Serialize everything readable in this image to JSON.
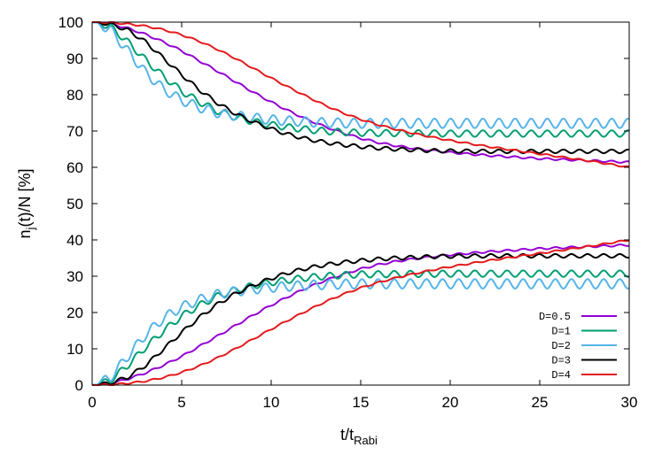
{
  "chart_data": {
    "type": "line",
    "xlabel": "t/t",
    "xlabel_sub": "Rabi",
    "ylabel": "n",
    "ylabel_sub": "j",
    "ylabel_rest": "(t)/N [%]",
    "xlim": [
      0,
      30
    ],
    "ylim": [
      0,
      100
    ],
    "xticks": [
      "0",
      "5",
      "10",
      "15",
      "20",
      "25",
      "30"
    ],
    "yticks": [
      "0",
      "10",
      "20",
      "30",
      "40",
      "50",
      "60",
      "70",
      "80",
      "90",
      "100"
    ],
    "grid": false,
    "legend_position": "bottom-right",
    "series": [
      {
        "name": "D=0.5",
        "color": "#9400d3",
        "upper": [
          [
            0,
            100
          ],
          [
            1,
            99.6
          ],
          [
            2,
            98.3
          ],
          [
            3,
            96.6
          ],
          [
            4,
            94.5
          ],
          [
            5,
            92.1
          ],
          [
            6,
            89.3
          ],
          [
            7,
            86.5
          ],
          [
            8,
            83.6
          ],
          [
            9,
            80.7
          ],
          [
            10,
            78.0
          ],
          [
            11,
            75.5
          ],
          [
            12,
            73.2
          ],
          [
            13,
            71.2
          ],
          [
            14,
            69.5
          ],
          [
            15,
            68.0
          ],
          [
            16,
            66.8
          ],
          [
            17,
            65.9
          ],
          [
            18,
            65.2
          ],
          [
            19,
            64.6
          ],
          [
            20,
            64.1
          ],
          [
            21,
            63.7
          ],
          [
            22,
            63.3
          ],
          [
            23,
            63.0
          ],
          [
            24,
            62.7
          ],
          [
            25,
            62.4
          ],
          [
            26,
            62.2
          ],
          [
            27,
            62.0
          ],
          [
            28,
            61.8
          ],
          [
            29,
            61.6
          ],
          [
            30,
            61.4
          ]
        ],
        "lower": [
          [
            0,
            0
          ],
          [
            1,
            0.4
          ],
          [
            2,
            1.7
          ],
          [
            3,
            3.4
          ],
          [
            4,
            5.5
          ],
          [
            5,
            7.9
          ],
          [
            6,
            10.7
          ],
          [
            7,
            13.5
          ],
          [
            8,
            16.4
          ],
          [
            9,
            19.3
          ],
          [
            10,
            22.0
          ],
          [
            11,
            24.5
          ],
          [
            12,
            26.8
          ],
          [
            13,
            28.8
          ],
          [
            14,
            30.5
          ],
          [
            15,
            32.0
          ],
          [
            16,
            33.2
          ],
          [
            17,
            34.1
          ],
          [
            18,
            34.8
          ],
          [
            19,
            35.4
          ],
          [
            20,
            35.9
          ],
          [
            21,
            36.3
          ],
          [
            22,
            36.7
          ],
          [
            23,
            37.0
          ],
          [
            24,
            37.3
          ],
          [
            25,
            37.6
          ],
          [
            26,
            37.8
          ],
          [
            27,
            38.0
          ],
          [
            28,
            38.2
          ],
          [
            29,
            38.4
          ],
          [
            30,
            38.6
          ]
        ],
        "osc_amp": 0.25
      },
      {
        "name": "D=1",
        "color": "#009e73",
        "upper": [
          [
            0,
            100
          ],
          [
            1,
            98.8
          ],
          [
            2,
            94.5
          ],
          [
            3,
            89.5
          ],
          [
            4,
            85.0
          ],
          [
            5,
            81.0
          ],
          [
            6,
            78.0
          ],
          [
            7,
            75.5
          ],
          [
            8,
            73.8
          ],
          [
            9,
            72.6
          ],
          [
            10,
            71.7
          ],
          [
            11,
            71.0
          ],
          [
            12,
            70.4
          ],
          [
            13,
            70.0
          ],
          [
            14,
            69.7
          ],
          [
            15,
            69.5
          ],
          [
            20,
            69.3
          ],
          [
            25,
            69.3
          ],
          [
            30,
            69.3
          ]
        ],
        "lower": [
          [
            0,
            0
          ],
          [
            1,
            1.2
          ],
          [
            2,
            5.5
          ],
          [
            3,
            10.5
          ],
          [
            4,
            15.0
          ],
          [
            5,
            19.0
          ],
          [
            6,
            22.0
          ],
          [
            7,
            24.5
          ],
          [
            8,
            26.2
          ],
          [
            9,
            27.4
          ],
          [
            10,
            28.3
          ],
          [
            11,
            29.0
          ],
          [
            12,
            29.6
          ],
          [
            13,
            30.0
          ],
          [
            14,
            30.3
          ],
          [
            15,
            30.5
          ],
          [
            20,
            30.7
          ],
          [
            25,
            30.7
          ],
          [
            30,
            30.7
          ]
        ],
        "osc_amp": 0.9
      },
      {
        "name": "D=2",
        "color": "#56b4e9",
        "upper": [
          [
            0,
            100
          ],
          [
            1,
            98.0
          ],
          [
            2,
            92.0
          ],
          [
            3,
            86.0
          ],
          [
            4,
            81.5
          ],
          [
            5,
            78.5
          ],
          [
            6,
            76.5
          ],
          [
            7,
            75.0
          ],
          [
            8,
            74.2
          ],
          [
            9,
            73.6
          ],
          [
            10,
            73.1
          ],
          [
            11,
            72.8
          ],
          [
            12,
            72.5
          ],
          [
            13,
            72.3
          ],
          [
            14,
            72.2
          ],
          [
            15,
            72.1
          ],
          [
            20,
            72.1
          ],
          [
            25,
            72.1
          ],
          [
            30,
            72.1
          ]
        ],
        "lower": [
          [
            0,
            0
          ],
          [
            1,
            2.0
          ],
          [
            2,
            8.0
          ],
          [
            3,
            14.0
          ],
          [
            4,
            18.5
          ],
          [
            5,
            21.5
          ],
          [
            6,
            23.5
          ],
          [
            7,
            25.0
          ],
          [
            8,
            25.8
          ],
          [
            9,
            26.4
          ],
          [
            10,
            26.9
          ],
          [
            11,
            27.2
          ],
          [
            12,
            27.5
          ],
          [
            13,
            27.7
          ],
          [
            14,
            27.8
          ],
          [
            15,
            27.9
          ],
          [
            20,
            27.9
          ],
          [
            25,
            27.9
          ],
          [
            30,
            27.9
          ]
        ],
        "osc_amp": 1.3
      },
      {
        "name": "D=3",
        "color": "#000000",
        "upper": [
          [
            0,
            100
          ],
          [
            1,
            99.5
          ],
          [
            2,
            97.8
          ],
          [
            3,
            94.5
          ],
          [
            4,
            90.0
          ],
          [
            5,
            85.5
          ],
          [
            6,
            81.3
          ],
          [
            7,
            77.7
          ],
          [
            8,
            74.8
          ],
          [
            9,
            72.5
          ],
          [
            10,
            70.6
          ],
          [
            11,
            69.0
          ],
          [
            12,
            67.8
          ],
          [
            13,
            66.9
          ],
          [
            14,
            66.2
          ],
          [
            15,
            65.7
          ],
          [
            16,
            65.3
          ],
          [
            17,
            65.0
          ],
          [
            18,
            64.8
          ],
          [
            19,
            64.6
          ],
          [
            20,
            64.5
          ],
          [
            22,
            64.4
          ],
          [
            25,
            64.4
          ],
          [
            30,
            64.4
          ]
        ],
        "lower": [
          [
            0,
            0
          ],
          [
            1,
            0.5
          ],
          [
            2,
            2.2
          ],
          [
            3,
            5.5
          ],
          [
            4,
            10.0
          ],
          [
            5,
            14.5
          ],
          [
            6,
            18.7
          ],
          [
            7,
            22.3
          ],
          [
            8,
            25.2
          ],
          [
            9,
            27.5
          ],
          [
            10,
            29.4
          ],
          [
            11,
            31.0
          ],
          [
            12,
            32.2
          ],
          [
            13,
            33.1
          ],
          [
            14,
            33.8
          ],
          [
            15,
            34.3
          ],
          [
            16,
            34.7
          ],
          [
            17,
            35.0
          ],
          [
            18,
            35.2
          ],
          [
            19,
            35.4
          ],
          [
            20,
            35.5
          ],
          [
            22,
            35.6
          ],
          [
            25,
            35.6
          ],
          [
            30,
            35.6
          ]
        ],
        "osc_amp": 0.5
      },
      {
        "name": "D=4",
        "color": "#e41a1c",
        "upper": [
          [
            0,
            100
          ],
          [
            1,
            99.9
          ],
          [
            2,
            99.5
          ],
          [
            3,
            98.9
          ],
          [
            4,
            97.9
          ],
          [
            5,
            96.5
          ],
          [
            6,
            94.7
          ],
          [
            7,
            92.5
          ],
          [
            8,
            90.0
          ],
          [
            9,
            87.3
          ],
          [
            10,
            84.6
          ],
          [
            11,
            82.0
          ],
          [
            12,
            79.5
          ],
          [
            13,
            77.1
          ],
          [
            14,
            75.0
          ],
          [
            15,
            73.2
          ],
          [
            16,
            71.7
          ],
          [
            17,
            70.4
          ],
          [
            18,
            69.3
          ],
          [
            19,
            68.3
          ],
          [
            20,
            67.4
          ],
          [
            21,
            66.6
          ],
          [
            22,
            65.8
          ],
          [
            23,
            65.1
          ],
          [
            24,
            64.4
          ],
          [
            25,
            63.7
          ],
          [
            26,
            63.0
          ],
          [
            27,
            62.3
          ],
          [
            28,
            61.6
          ],
          [
            29,
            60.8
          ],
          [
            30,
            60.0
          ]
        ],
        "lower": [
          [
            0,
            0
          ],
          [
            1,
            0.1
          ],
          [
            2,
            0.5
          ],
          [
            3,
            1.1
          ],
          [
            4,
            2.1
          ],
          [
            5,
            3.5
          ],
          [
            6,
            5.3
          ],
          [
            7,
            7.5
          ],
          [
            8,
            10.0
          ],
          [
            9,
            12.7
          ],
          [
            10,
            15.4
          ],
          [
            11,
            18.0
          ],
          [
            12,
            20.5
          ],
          [
            13,
            22.9
          ],
          [
            14,
            25.0
          ],
          [
            15,
            26.8
          ],
          [
            16,
            28.3
          ],
          [
            17,
            29.6
          ],
          [
            18,
            30.7
          ],
          [
            19,
            31.7
          ],
          [
            20,
            32.6
          ],
          [
            21,
            33.4
          ],
          [
            22,
            34.2
          ],
          [
            23,
            34.9
          ],
          [
            24,
            35.6
          ],
          [
            25,
            36.3
          ],
          [
            26,
            37.0
          ],
          [
            27,
            37.7
          ],
          [
            28,
            38.4
          ],
          [
            29,
            39.2
          ],
          [
            30,
            40.0
          ]
        ],
        "osc_amp": 0.2
      }
    ]
  }
}
